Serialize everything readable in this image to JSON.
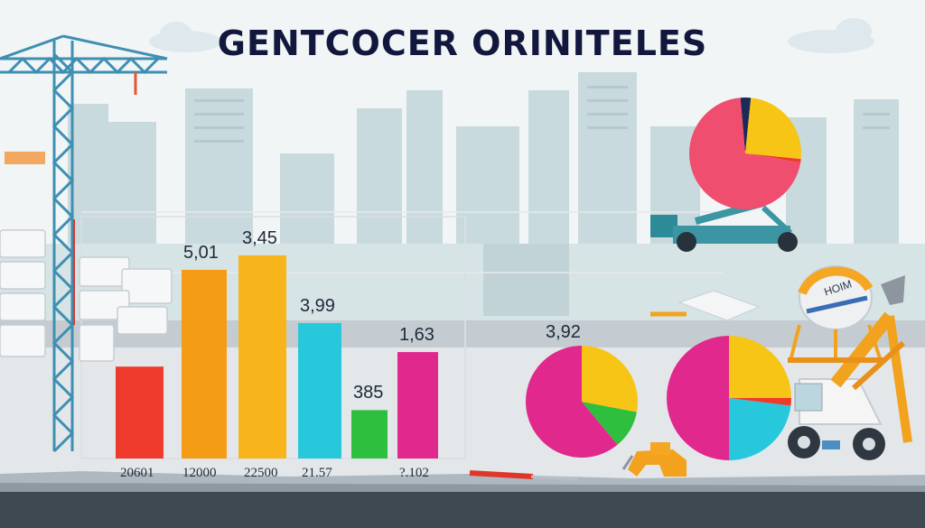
{
  "title": "GENTCOCER ORINITELES",
  "colors": {
    "red": "#ee3b2b",
    "orange": "#f59c17",
    "amber": "#f7b51b",
    "cyan": "#28c8dc",
    "green": "#2fbf3f",
    "magenta": "#e1288c",
    "pink": "#f04e6e",
    "yellow": "#f7c515",
    "navy": "#1d2a57"
  },
  "chart_data": [
    {
      "type": "bar",
      "title": "",
      "xlabel": "",
      "ylabel": "",
      "categories": [
        "20601",
        "12000",
        "22500",
        "21.57",
        "",
        "?.102"
      ],
      "values": [
        1.9,
        3.9,
        4.2,
        2.8,
        1.0,
        2.2
      ],
      "value_labels": [
        "",
        "5,01",
        "3,45",
        "3,99",
        "385",
        "1,63"
      ],
      "bar_colors": [
        "#ee3b2b",
        "#f59c17",
        "#f7b51b",
        "#28c8dc",
        "#2fbf3f",
        "#e1288c"
      ],
      "ylim": [
        0,
        5
      ],
      "grid": true
    },
    {
      "type": "pie",
      "title": "",
      "value_label": "3,92",
      "slices": [
        {
          "value": 28,
          "color": "#f7c515"
        },
        {
          "value": 11,
          "color": "#2fbf3f"
        },
        {
          "value": 61,
          "color": "#e1288c"
        }
      ]
    },
    {
      "type": "pie",
      "title": "",
      "slices": [
        {
          "value": 25,
          "color": "#f7c515"
        },
        {
          "value": 2,
          "color": "#ee3b2b"
        },
        {
          "value": 23,
          "color": "#28c8dc"
        },
        {
          "value": 50,
          "color": "#e1288c"
        }
      ]
    },
    {
      "type": "pie",
      "title": "",
      "slices": [
        {
          "value": 3,
          "color": "#1d2a57"
        },
        {
          "value": 25,
          "color": "#f7c515"
        },
        {
          "value": 1,
          "color": "#ee3b2b"
        },
        {
          "value": 71,
          "color": "#f04e6e"
        }
      ]
    }
  ],
  "props": {
    "machine_sign": "HOIM",
    "icons": [
      "crane-icon",
      "mixer-truck-icon",
      "excavator-icon",
      "block-stack-icon",
      "drill-icon",
      "trowel-icon",
      "city-skyline-icon"
    ]
  }
}
